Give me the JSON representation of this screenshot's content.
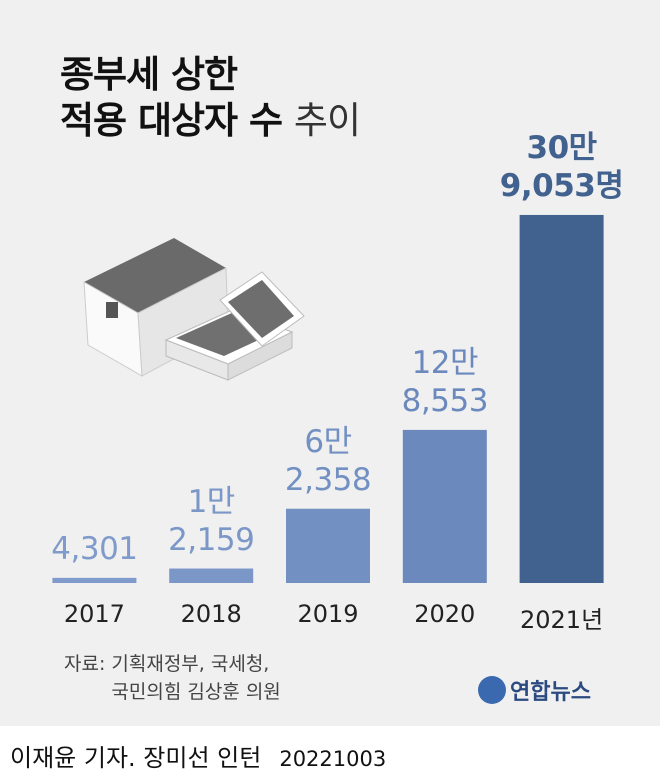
{
  "chart_data": {
    "type": "bar",
    "title": "종부세 상한\n적용 대상자 수",
    "subtitle": "추이",
    "categories": [
      "2017",
      "2018",
      "2019",
      "2020",
      "2021년"
    ],
    "values": [
      4301,
      12159,
      62358,
      128553,
      309053
    ],
    "value_labels": [
      "4,301",
      "1만\n2,159",
      "6만\n2,358",
      "12만\n8,553",
      "30만\n9,053명"
    ],
    "colors": [
      "#7f9acb",
      "#7b97c8",
      "#7390c3",
      "#6c89bd",
      "#41618f"
    ],
    "ylim": [
      0,
      330000
    ],
    "source_label": "자료:",
    "source": "기획재정부, 국세청,\n국민의힘 김상훈 의원",
    "logo": "연합뉴스",
    "credit": "이재윤 기자. 장미선 인턴",
    "date": "20221003"
  }
}
